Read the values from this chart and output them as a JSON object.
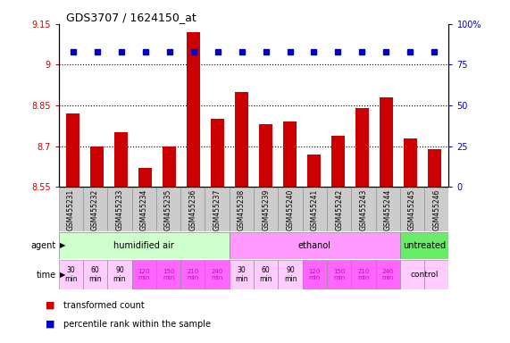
{
  "title": "GDS3707 / 1624150_at",
  "samples": [
    "GSM455231",
    "GSM455232",
    "GSM455233",
    "GSM455234",
    "GSM455235",
    "GSM455236",
    "GSM455237",
    "GSM455238",
    "GSM455239",
    "GSM455240",
    "GSM455241",
    "GSM455242",
    "GSM455243",
    "GSM455244",
    "GSM455245",
    "GSM455246"
  ],
  "bar_values": [
    8.82,
    8.7,
    8.75,
    8.62,
    8.7,
    9.12,
    8.8,
    8.9,
    8.78,
    8.79,
    8.67,
    8.74,
    8.84,
    8.88,
    8.73,
    8.69
  ],
  "percentile_pct": [
    83,
    83,
    83,
    83,
    83,
    83,
    83,
    83,
    83,
    83,
    83,
    83,
    83,
    83,
    83,
    83
  ],
  "bar_color": "#cc0000",
  "percentile_color": "#0000cc",
  "ylim": [
    8.55,
    9.15
  ],
  "yticks_left": [
    8.55,
    8.7,
    8.85,
    9.0,
    9.15
  ],
  "yticks_right": [
    0,
    25,
    50,
    75,
    100
  ],
  "ytick_labels_left": [
    "8.55",
    "8.7",
    "8.85",
    "9",
    "9.15"
  ],
  "ytick_labels_right": [
    "0",
    "25",
    "50",
    "75",
    "100%"
  ],
  "dotted_lines": [
    9.0,
    8.85,
    8.7
  ],
  "agent_groups": [
    {
      "label": "humidified air",
      "start": 0,
      "end": 7,
      "color": "#ccffcc"
    },
    {
      "label": "ethanol",
      "start": 7,
      "end": 14,
      "color": "#ff99ff"
    },
    {
      "label": "untreated",
      "start": 14,
      "end": 16,
      "color": "#66ee66"
    }
  ],
  "time_labels_per_col": [
    "30\nmin",
    "60\nmin",
    "90\nmin",
    "120\nmin",
    "150\nmin",
    "210\nmin",
    "240\nmin",
    "30\nmin",
    "60\nmin",
    "90\nmin",
    "120\nmin",
    "150\nmin",
    "210\nmin",
    "240\nmin",
    "",
    ""
  ],
  "time_colors_per_col": [
    "#ffccff",
    "#ffccff",
    "#ffccff",
    "#ff66ff",
    "#ff66ff",
    "#ff66ff",
    "#ff66ff",
    "#ffccff",
    "#ffccff",
    "#ffccff",
    "#ff66ff",
    "#ff66ff",
    "#ff66ff",
    "#ff66ff",
    "#ffccff",
    "#ffccff"
  ],
  "time_text_colors": [
    "#000000",
    "#000000",
    "#000000",
    "#cc00cc",
    "#cc00cc",
    "#cc00cc",
    "#cc00cc",
    "#000000",
    "#000000",
    "#000000",
    "#cc00cc",
    "#cc00cc",
    "#cc00cc",
    "#cc00cc",
    "#000000",
    "#000000"
  ],
  "control_label": "control",
  "sample_box_color": "#cccccc",
  "legend_items": [
    {
      "color": "#cc0000",
      "label": "transformed count"
    },
    {
      "color": "#0000cc",
      "label": "percentile rank within the sample"
    }
  ]
}
